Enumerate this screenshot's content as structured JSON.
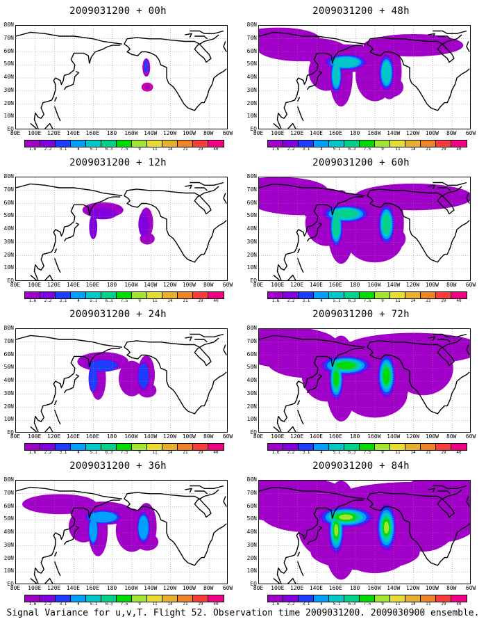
{
  "panels": [
    {
      "title": "2009031200 + 00h",
      "level": 0
    },
    {
      "title": "2009031200 + 12h",
      "level": 1
    },
    {
      "title": "2009031200 + 24h",
      "level": 2
    },
    {
      "title": "2009031200 + 36h",
      "level": 3
    },
    {
      "title": "2009031200 + 48h",
      "level": 4
    },
    {
      "title": "2009031200 + 60h",
      "level": 5
    },
    {
      "title": "2009031200 + 72h",
      "level": 6
    },
    {
      "title": "2009031200 + 84h",
      "level": 7
    }
  ],
  "lat_labels": [
    "80N",
    "70N",
    "60N",
    "50N",
    "40N",
    "30N",
    "20N",
    "10N",
    "EQ"
  ],
  "lon_labels": [
    "80E",
    "100E",
    "120E",
    "140E",
    "160E",
    "180",
    "160W",
    "140W",
    "120W",
    "100W",
    "80W",
    "60W"
  ],
  "colorbar": {
    "labels": [
      "1.6",
      "2.2",
      "3.1",
      "4",
      "5.1",
      "6.3",
      "7.5",
      "9",
      "11",
      "14",
      "21",
      "29",
      "40"
    ],
    "colors": [
      "#a000c8",
      "#8200dc",
      "#1e3cff",
      "#00a0ff",
      "#00c8c8",
      "#00d28c",
      "#00dc00",
      "#a0e632",
      "#e6dc32",
      "#e6af2d",
      "#f08228",
      "#fa3c3c",
      "#f00082"
    ]
  },
  "footer": "Signal Variance for u,v,T. Flight 52. Observation time 2009031200. 2009030900 ensemble."
}
